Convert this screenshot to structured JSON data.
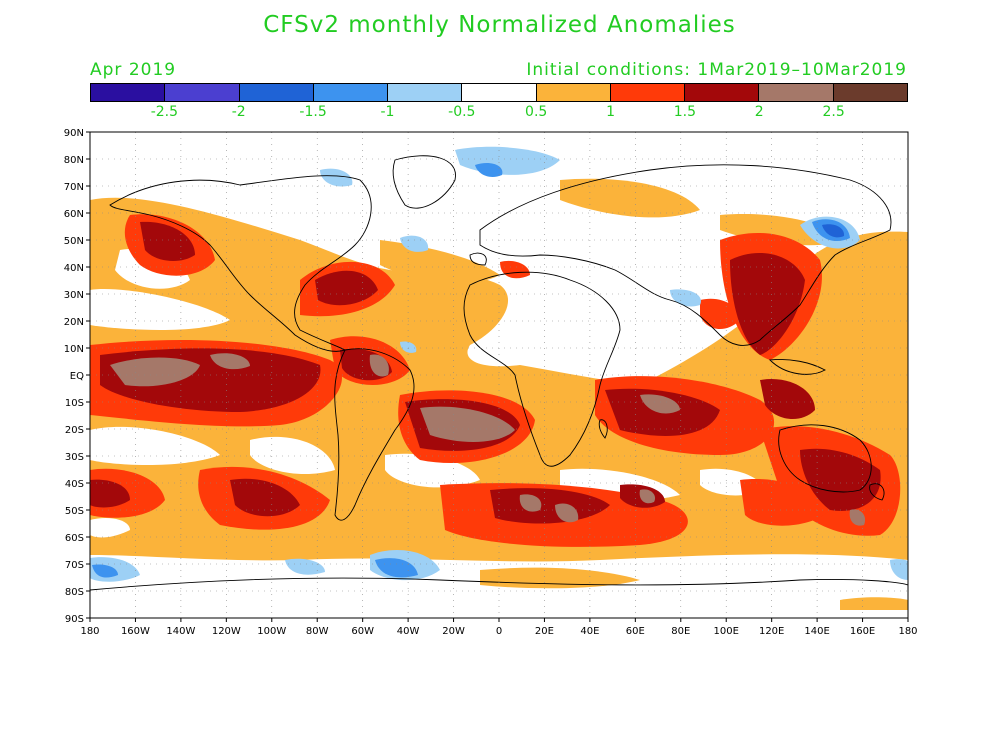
{
  "header": {
    "title": "CFSv2 monthly Normalized Anomalies",
    "valid_month": "Apr 2019",
    "initial_conditions": "Initial conditions: 1Mar2019–10Mar2019"
  },
  "colorbar": {
    "colors": [
      "#2a0fa0",
      "#4b3fd0",
      "#1f63d6",
      "#3d93ef",
      "#9dd0f5",
      "#ffffff",
      "#fbb33a",
      "#ff3a09",
      "#a3080a",
      "#a57869",
      "#6b3b2c"
    ],
    "labels": [
      "-2.5",
      "-2",
      "-1.5",
      "-1",
      "-0.5",
      "0.5",
      "1",
      "1.5",
      "2",
      "2.5"
    ]
  },
  "map": {
    "lat_labels": [
      "90N",
      "80N",
      "70N",
      "60N",
      "50N",
      "40N",
      "30N",
      "20N",
      "10N",
      "EQ",
      "10S",
      "20S",
      "30S",
      "40S",
      "50S",
      "60S",
      "70S",
      "80S",
      "90S"
    ],
    "lon_labels": [
      "180",
      "160W",
      "140W",
      "120W",
      "100W",
      "80W",
      "60W",
      "40W",
      "20W",
      "0",
      "20E",
      "40E",
      "60E",
      "80E",
      "100E",
      "120E",
      "140E",
      "160E",
      "180"
    ]
  }
}
